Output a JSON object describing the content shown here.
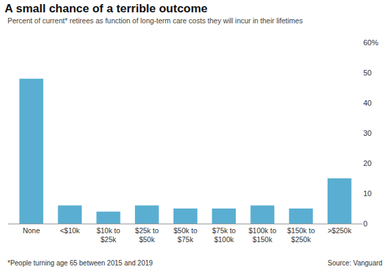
{
  "chart_data": {
    "type": "bar",
    "title": "A small chance of a terrible outcome",
    "subtitle": "Percent of current* retirees as function of long-term care costs they will incur in their lifetimes",
    "annotations": [
      "*People turning age 65 between 2015 and 2019",
      "Source: Vanguard"
    ],
    "categories": [
      "None",
      "<$10k",
      "$10k to $25k",
      "$25k to $50k",
      "$50k to $75k",
      "$75k to $100k",
      "$100k to $150k",
      "$150k to $250k",
      ">$250k"
    ],
    "values": [
      48,
      6,
      4,
      6,
      5,
      5,
      6,
      5,
      15
    ],
    "color": "#5aaed1",
    "ylim": [
      0,
      60
    ],
    "yticks": [
      0,
      10,
      20,
      30,
      40,
      50,
      {
        "value": 60,
        "label": "60%"
      }
    ],
    "grid": false
  }
}
